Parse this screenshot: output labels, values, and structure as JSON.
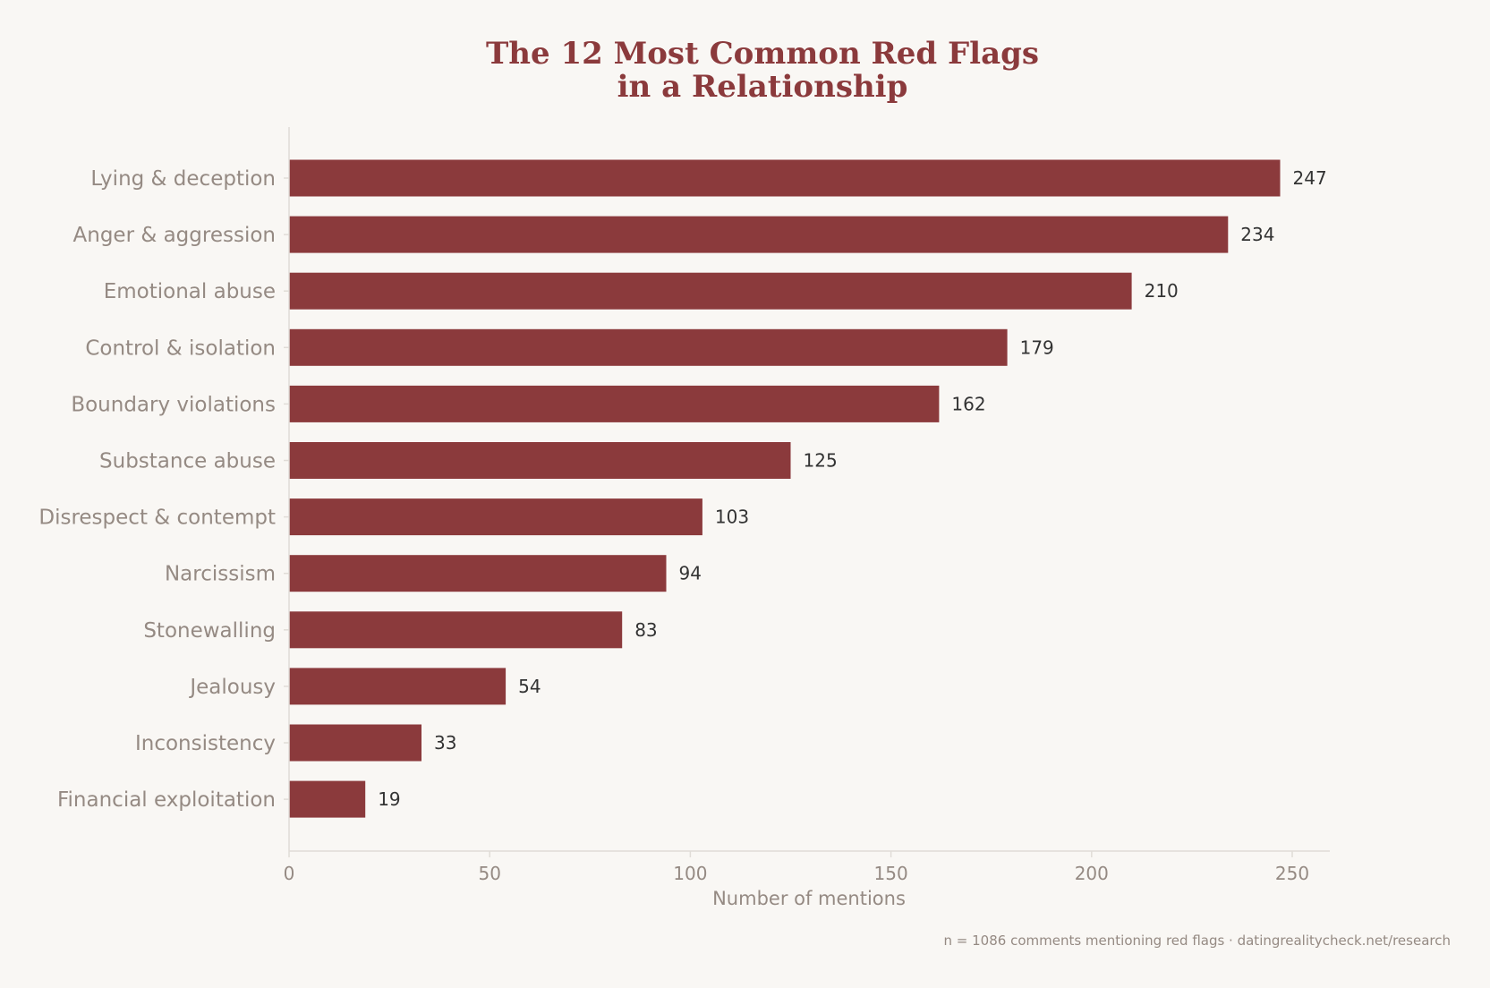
{
  "chart_data": {
    "type": "bar",
    "orientation": "horizontal",
    "title": [
      "The 12 Most Common Red Flags",
      "in a Relationship"
    ],
    "xlabel": "Number of mentions",
    "ylabel": "",
    "xlim": [
      0,
      260
    ],
    "xticks": [
      0,
      50,
      100,
      150,
      200,
      250
    ],
    "categories": [
      "Lying & deception",
      "Anger & aggression",
      "Emotional abuse",
      "Control & isolation",
      "Boundary violations",
      "Substance abuse",
      "Disrespect & contempt",
      "Narcissism",
      "Stonewalling",
      "Jealousy",
      "Inconsistency",
      "Financial exploitation"
    ],
    "values": [
      247,
      234,
      210,
      179,
      162,
      125,
      103,
      94,
      83,
      54,
      33,
      19
    ],
    "bar_color": "#8b3a3c",
    "grid": false,
    "footnote": "n = 1086 comments mentioning red flags · datingrealitycheck.net/research"
  }
}
